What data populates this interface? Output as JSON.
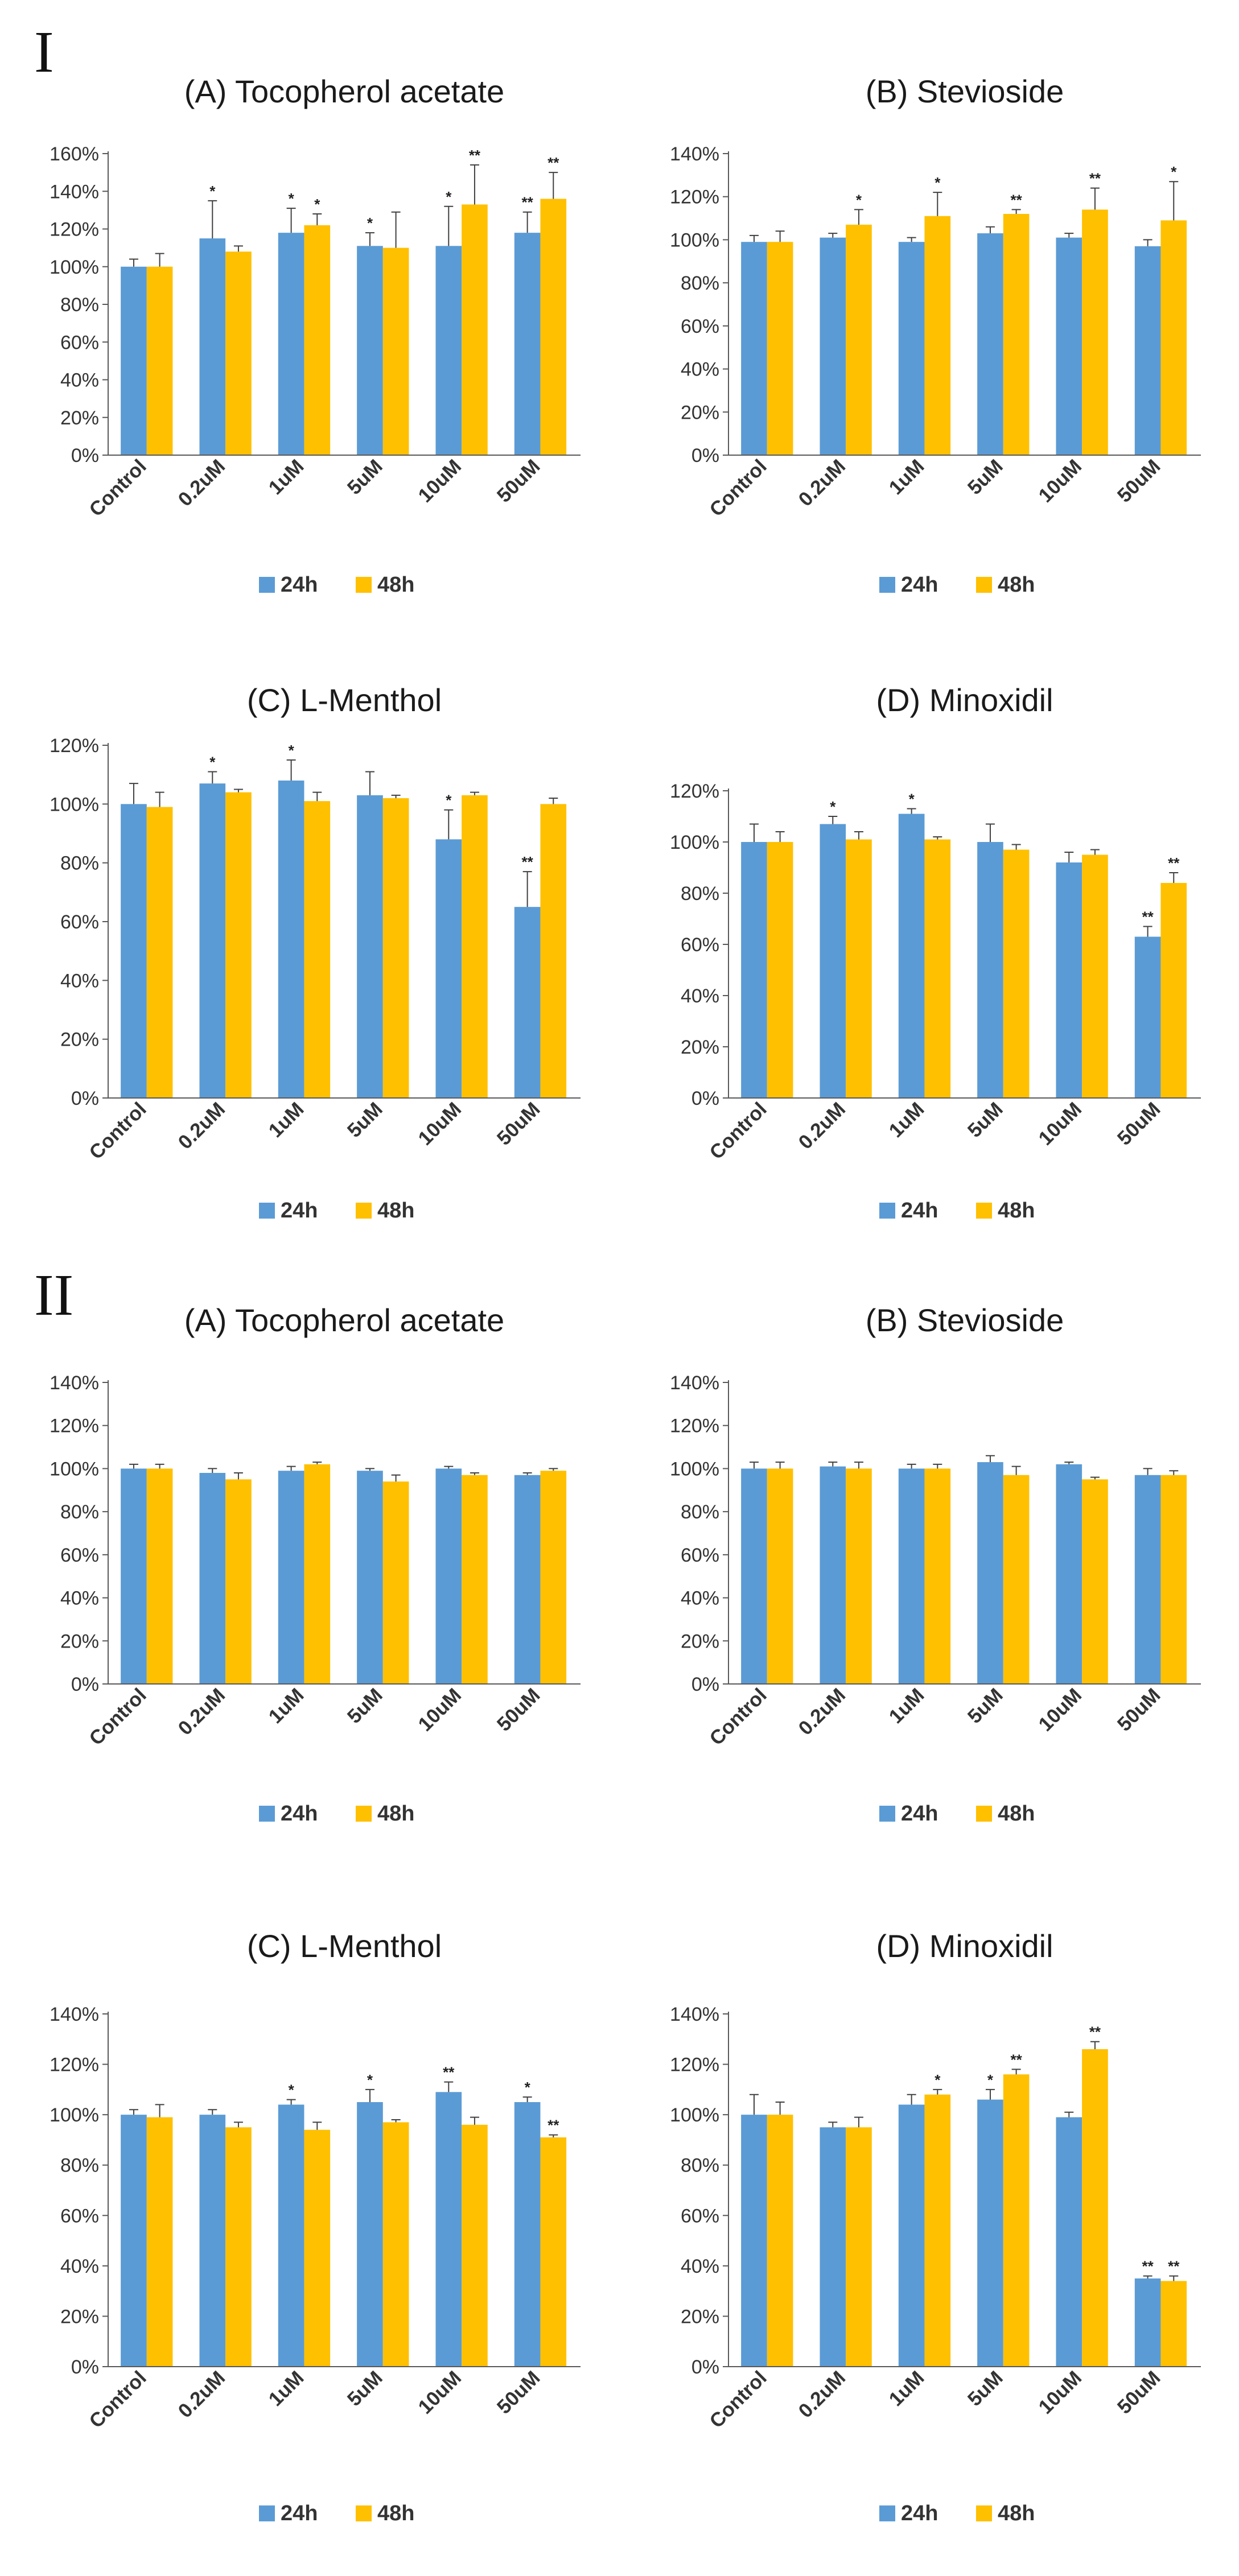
{
  "sections": [
    {
      "label": "I"
    },
    {
      "label": "II"
    }
  ],
  "colors": {
    "s24": "#5b9bd5",
    "s48": "#ffc000",
    "axis": "#595959",
    "err": "#404040"
  },
  "chart_data": [
    {
      "section": "I",
      "type": "bar",
      "title": "(A) Tocopherol acetate",
      "categories": [
        "Control",
        "0.2uM",
        "1uM",
        "5uM",
        "10uM",
        "50uM"
      ],
      "ylim": [
        0,
        160
      ],
      "yticks": [
        "0%",
        "20%",
        "40%",
        "60%",
        "80%",
        "100%",
        "120%",
        "140%",
        "160%"
      ],
      "series": [
        {
          "name": "24h",
          "values": [
            100,
            115,
            118,
            111,
            111,
            118
          ],
          "errors": [
            4,
            20,
            13,
            7,
            21,
            11
          ],
          "sig": [
            "",
            "*",
            "*",
            "*",
            "*",
            "**"
          ]
        },
        {
          "name": "48h",
          "values": [
            100,
            108,
            122,
            110,
            133,
            136
          ],
          "errors": [
            7,
            3,
            6,
            19,
            21,
            14
          ],
          "sig": [
            "",
            "",
            "*",
            "",
            "**",
            "**"
          ]
        }
      ]
    },
    {
      "section": "I",
      "type": "bar",
      "title": "(B) Stevioside",
      "categories": [
        "Control",
        "0.2uM",
        "1uM",
        "5uM",
        "10uM",
        "50uM"
      ],
      "ylim": [
        0,
        140
      ],
      "yticks": [
        "0%",
        "20%",
        "40%",
        "60%",
        "80%",
        "100%",
        "120%",
        "140%"
      ],
      "series": [
        {
          "name": "24h",
          "values": [
            99,
            101,
            99,
            103,
            101,
            97
          ],
          "errors": [
            3,
            2,
            2,
            3,
            2,
            3
          ],
          "sig": [
            "",
            "",
            "",
            "",
            "",
            ""
          ]
        },
        {
          "name": "48h",
          "values": [
            99,
            107,
            111,
            112,
            114,
            109
          ],
          "errors": [
            5,
            7,
            11,
            2,
            10,
            18
          ],
          "sig": [
            "",
            "*",
            "*",
            "**",
            "**",
            "*"
          ]
        }
      ]
    },
    {
      "section": "I",
      "type": "bar",
      "title": "(C) L-Menthol",
      "categories": [
        "Control",
        "0.2uM",
        "1uM",
        "5uM",
        "10uM",
        "50uM"
      ],
      "ylim": [
        0,
        120
      ],
      "yticks": [
        "0%",
        "20%",
        "40%",
        "60%",
        "80%",
        "100%",
        "120%"
      ],
      "series": [
        {
          "name": "24h",
          "values": [
            100,
            107,
            108,
            103,
            88,
            65
          ],
          "errors": [
            7,
            4,
            7,
            8,
            10,
            12
          ],
          "sig": [
            "",
            "*",
            "*",
            "",
            "*",
            "**"
          ]
        },
        {
          "name": "48h",
          "values": [
            99,
            104,
            101,
            102,
            103,
            100
          ],
          "errors": [
            5,
            1,
            3,
            1,
            1,
            2
          ],
          "sig": [
            "",
            "",
            "",
            "",
            "",
            ""
          ]
        }
      ]
    },
    {
      "section": "I",
      "type": "bar",
      "title": "(D) Minoxidil",
      "categories": [
        "Control",
        "0.2uM",
        "1uM",
        "5uM",
        "10uM",
        "50uM"
      ],
      "ylim": [
        0,
        120
      ],
      "yticks": [
        "0%",
        "20%",
        "40%",
        "60%",
        "80%",
        "100%",
        "120%"
      ],
      "series": [
        {
          "name": "24h",
          "values": [
            100,
            107,
            111,
            100,
            92,
            63
          ],
          "errors": [
            7,
            3,
            2,
            7,
            4,
            4
          ],
          "sig": [
            "",
            "*",
            "*",
            "",
            "",
            "**"
          ]
        },
        {
          "name": "48h",
          "values": [
            100,
            101,
            101,
            97,
            95,
            84
          ],
          "errors": [
            4,
            3,
            1,
            2,
            2,
            4
          ],
          "sig": [
            "",
            "",
            "",
            "",
            "",
            "**"
          ]
        }
      ]
    },
    {
      "section": "II",
      "type": "bar",
      "title": "(A) Tocopherol acetate",
      "categories": [
        "Control",
        "0.2uM",
        "1uM",
        "5uM",
        "10uM",
        "50uM"
      ],
      "ylim": [
        0,
        140
      ],
      "yticks": [
        "0%",
        "20%",
        "40%",
        "60%",
        "80%",
        "100%",
        "120%",
        "140%"
      ],
      "series": [
        {
          "name": "24h",
          "values": [
            100,
            98,
            99,
            99,
            100,
            97
          ],
          "errors": [
            2,
            2,
            2,
            1,
            1,
            1
          ],
          "sig": [
            "",
            "",
            "",
            "",
            "",
            ""
          ]
        },
        {
          "name": "48h",
          "values": [
            100,
            95,
            102,
            94,
            97,
            99
          ],
          "errors": [
            2,
            3,
            1,
            3,
            1,
            1
          ],
          "sig": [
            "",
            "",
            "",
            "",
            "",
            ""
          ]
        }
      ]
    },
    {
      "section": "II",
      "type": "bar",
      "title": "(B) Stevioside",
      "categories": [
        "Control",
        "0.2uM",
        "1uM",
        "5uM",
        "10uM",
        "50uM"
      ],
      "ylim": [
        0,
        140
      ],
      "yticks": [
        "0%",
        "20%",
        "40%",
        "60%",
        "80%",
        "100%",
        "120%",
        "140%"
      ],
      "series": [
        {
          "name": "24h",
          "values": [
            100,
            101,
            100,
            103,
            102,
            97
          ],
          "errors": [
            3,
            2,
            2,
            3,
            1,
            3
          ],
          "sig": [
            "",
            "",
            "",
            "",
            "",
            ""
          ]
        },
        {
          "name": "48h",
          "values": [
            100,
            100,
            100,
            97,
            95,
            97
          ],
          "errors": [
            3,
            3,
            2,
            4,
            1,
            2
          ],
          "sig": [
            "",
            "",
            "",
            "",
            "",
            ""
          ]
        }
      ]
    },
    {
      "section": "II",
      "type": "bar",
      "title": "(C) L-Menthol",
      "categories": [
        "Control",
        "0.2uM",
        "1uM",
        "5uM",
        "10uM",
        "50uM"
      ],
      "ylim": [
        0,
        140
      ],
      "yticks": [
        "0%",
        "20%",
        "40%",
        "60%",
        "80%",
        "100%",
        "120%",
        "140%"
      ],
      "series": [
        {
          "name": "24h",
          "values": [
            100,
            100,
            104,
            105,
            109,
            105
          ],
          "errors": [
            2,
            2,
            2,
            5,
            4,
            2
          ],
          "sig": [
            "",
            "",
            "*",
            "*",
            "**",
            "*"
          ]
        },
        {
          "name": "48h",
          "values": [
            99,
            95,
            94,
            97,
            96,
            91
          ],
          "errors": [
            5,
            2,
            3,
            1,
            3,
            1
          ],
          "sig": [
            "",
            "",
            "",
            "",
            "",
            "**"
          ]
        }
      ]
    },
    {
      "section": "II",
      "type": "bar",
      "title": "(D) Minoxidil",
      "categories": [
        "Control",
        "0.2uM",
        "1uM",
        "5uM",
        "10uM",
        "50uM"
      ],
      "ylim": [
        0,
        140
      ],
      "yticks": [
        "0%",
        "20%",
        "40%",
        "60%",
        "80%",
        "100%",
        "120%",
        "140%"
      ],
      "series": [
        {
          "name": "24h",
          "values": [
            100,
            95,
            104,
            106,
            99,
            35
          ],
          "errors": [
            8,
            2,
            4,
            4,
            2,
            1
          ],
          "sig": [
            "",
            "",
            "",
            "*",
            "",
            "**"
          ]
        },
        {
          "name": "48h",
          "values": [
            100,
            95,
            108,
            116,
            126,
            34
          ],
          "errors": [
            5,
            4,
            2,
            2,
            3,
            2
          ],
          "sig": [
            "",
            "",
            "*",
            "**",
            "**",
            "**"
          ]
        }
      ]
    }
  ]
}
